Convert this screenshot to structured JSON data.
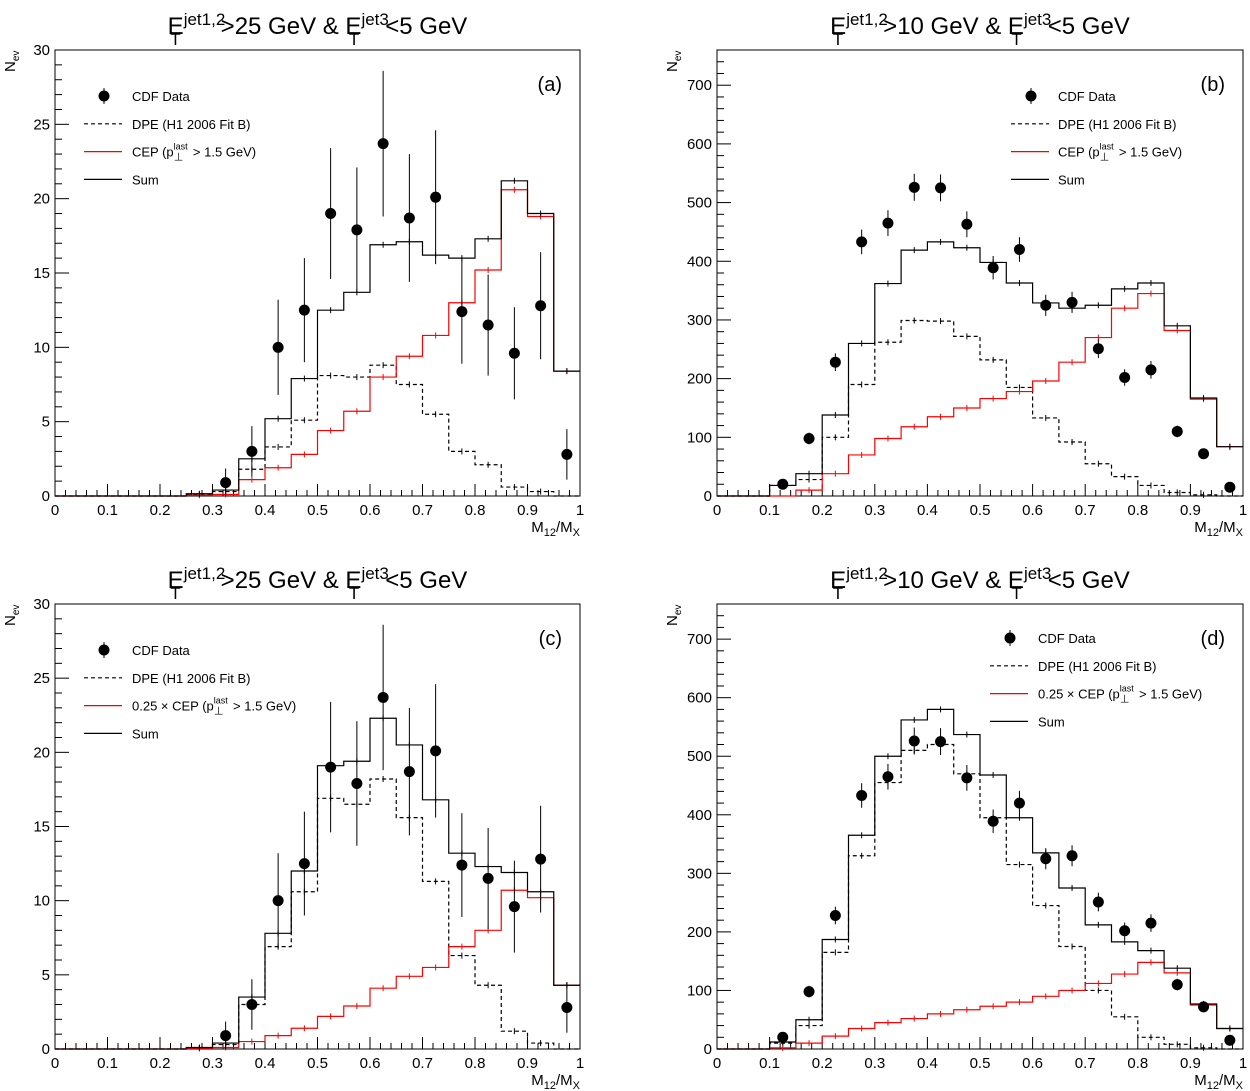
{
  "chart_data": [
    {
      "type": "histogram",
      "panel_label": "(a)",
      "title": {
        "p1": "E",
        "s1": "T",
        "u1": "jet1,2",
        "mid": ">25 GeV & E",
        "s2": "T",
        "u2": "jet3",
        "end": "<5 GeV"
      },
      "xlabel": "M12/MX",
      "ylabel": "Nev",
      "xlim": [
        0,
        1
      ],
      "ylim": [
        0,
        30
      ],
      "yticks": [
        0,
        5,
        10,
        15,
        20,
        25,
        30
      ],
      "bins": 20,
      "legend": [
        {
          "key": "data",
          "pre": "CDF Data",
          "sup": "",
          "post": ""
        },
        {
          "key": "dpe",
          "pre": "DPE (H1 2006 Fit B)",
          "sup": "",
          "post": ""
        },
        {
          "key": "cep",
          "pre": "CEP (p",
          "sup": "last",
          "post": " > 1.5 GeV)"
        },
        {
          "key": "sum",
          "pre": "Sum",
          "sup": "",
          "post": ""
        }
      ],
      "data_points": {
        "x": [
          0.325,
          0.375,
          0.425,
          0.475,
          0.525,
          0.575,
          0.625,
          0.675,
          0.725,
          0.775,
          0.825,
          0.875,
          0.925,
          0.975
        ],
        "y": [
          0.9,
          3.0,
          10.0,
          12.5,
          19.0,
          17.9,
          23.7,
          18.7,
          20.1,
          12.4,
          11.5,
          9.6,
          12.8,
          2.8
        ],
        "err": [
          0.95,
          1.7,
          3.2,
          3.5,
          4.4,
          4.2,
          4.9,
          4.3,
          4.5,
          3.5,
          3.4,
          3.1,
          3.6,
          1.7
        ]
      },
      "dpe": [
        0,
        0,
        0,
        0,
        0,
        0.1,
        0.3,
        1.8,
        3.3,
        5.1,
        8.1,
        8.0,
        8.8,
        7.5,
        5.5,
        3.0,
        2.1,
        0.6,
        0.3,
        0
      ],
      "cep": [
        0,
        0,
        0,
        0,
        0,
        0.05,
        0.1,
        1.1,
        1.9,
        2.8,
        4.4,
        5.7,
        8.0,
        9.4,
        10.8,
        13.0,
        15.2,
        20.6,
        18.8,
        8.4
      ],
      "sum": [
        0,
        0,
        0,
        0,
        0,
        0.15,
        0.4,
        2.5,
        5.2,
        7.9,
        12.5,
        13.7,
        16.9,
        17.1,
        16.2,
        16.0,
        17.3,
        21.2,
        19.0,
        8.4
      ]
    },
    {
      "type": "histogram",
      "panel_label": "(b)",
      "title": {
        "p1": "E",
        "s1": "T",
        "u1": "jet1,2",
        "mid": ">10 GeV & E",
        "s2": "T",
        "u2": "jet3",
        "end": "<5 GeV"
      },
      "xlabel": "M12/MX",
      "ylabel": "Nev",
      "xlim": [
        0,
        1
      ],
      "ylim": [
        0,
        760
      ],
      "yticks": [
        0,
        100,
        200,
        300,
        400,
        500,
        600,
        700
      ],
      "bins": 20,
      "legend": [
        {
          "key": "data",
          "pre": "CDF Data",
          "sup": "",
          "post": ""
        },
        {
          "key": "dpe",
          "pre": "DPE (H1 2006 Fit B)",
          "sup": "",
          "post": ""
        },
        {
          "key": "cep",
          "pre": "CEP (p",
          "sup": "last",
          "post": " > 1.5 GeV)"
        },
        {
          "key": "sum",
          "pre": "Sum",
          "sup": "",
          "post": ""
        }
      ],
      "data_points": {
        "x": [
          0.125,
          0.175,
          0.225,
          0.275,
          0.325,
          0.375,
          0.425,
          0.475,
          0.525,
          0.575,
          0.625,
          0.675,
          0.725,
          0.775,
          0.825,
          0.875,
          0.925,
          0.975
        ],
        "y": [
          20,
          98,
          228,
          433,
          465,
          526,
          525,
          463,
          389,
          420,
          325,
          330,
          251,
          202,
          215,
          110,
          72,
          15
        ],
        "err": [
          5,
          10,
          15,
          21,
          22,
          23,
          23,
          22,
          20,
          21,
          18,
          18,
          16,
          14,
          15,
          10,
          8,
          4
        ]
      },
      "dpe": [
        0,
        0,
        18,
        28,
        100,
        190,
        262,
        299,
        298,
        272,
        232,
        185,
        133,
        92,
        55,
        33,
        18,
        6,
        2,
        0
      ],
      "cep": [
        0,
        0,
        0,
        10,
        38,
        70,
        98,
        118,
        135,
        150,
        166,
        178,
        196,
        228,
        270,
        320,
        345,
        282,
        165,
        84
      ],
      "sum": [
        0,
        0,
        18,
        38,
        138,
        260,
        362,
        419,
        433,
        423,
        398,
        363,
        329,
        320,
        325,
        353,
        363,
        290,
        167,
        84
      ]
    },
    {
      "type": "histogram",
      "panel_label": "(c)",
      "title": {
        "p1": "E",
        "s1": "T",
        "u1": "jet1,2",
        "mid": ">25 GeV & E",
        "s2": "T",
        "u2": "jet3",
        "end": "<5 GeV"
      },
      "xlabel": "M12/MX",
      "ylabel": "Nev",
      "xlim": [
        0,
        1
      ],
      "ylim": [
        0,
        30
      ],
      "yticks": [
        0,
        5,
        10,
        15,
        20,
        25,
        30
      ],
      "bins": 20,
      "legend": [
        {
          "key": "data",
          "pre": "CDF Data",
          "sup": "",
          "post": ""
        },
        {
          "key": "dpe",
          "pre": "DPE (H1 2006 Fit B)",
          "sup": "",
          "post": ""
        },
        {
          "key": "cep",
          "pre": "0.25 × CEP (p",
          "sup": "last",
          "post": " > 1.5 GeV)"
        },
        {
          "key": "sum",
          "pre": "Sum",
          "sup": "",
          "post": ""
        }
      ],
      "data_points": {
        "x": [
          0.325,
          0.375,
          0.425,
          0.475,
          0.525,
          0.575,
          0.625,
          0.675,
          0.725,
          0.775,
          0.825,
          0.875,
          0.925,
          0.975
        ],
        "y": [
          0.9,
          3.0,
          10.0,
          12.5,
          19.0,
          17.9,
          23.7,
          18.7,
          20.1,
          12.4,
          11.5,
          9.6,
          12.8,
          2.8
        ],
        "err": [
          0.95,
          1.7,
          3.2,
          3.5,
          4.4,
          4.2,
          4.9,
          4.3,
          4.5,
          3.5,
          3.4,
          3.1,
          3.6,
          1.7
        ]
      },
      "dpe": [
        0,
        0,
        0,
        0,
        0,
        0.05,
        0.3,
        3.0,
        6.9,
        10.6,
        16.9,
        16.5,
        18.2,
        15.6,
        11.3,
        6.3,
        4.3,
        1.2,
        0.4,
        0
      ],
      "cep": [
        0,
        0,
        0,
        0,
        0,
        0.05,
        0.1,
        0.5,
        0.9,
        1.4,
        2.2,
        2.9,
        4.1,
        4.9,
        5.5,
        6.9,
        8.0,
        10.7,
        10.2,
        4.3
      ],
      "sum": [
        0,
        0,
        0,
        0,
        0,
        0.1,
        0.4,
        3.5,
        7.8,
        12.0,
        19.1,
        19.4,
        22.3,
        20.5,
        16.8,
        13.2,
        12.3,
        11.9,
        10.6,
        4.3
      ]
    },
    {
      "type": "histogram",
      "panel_label": "(d)",
      "title": {
        "p1": "E",
        "s1": "T",
        "u1": "jet1,2",
        "mid": ">10 GeV & E",
        "s2": "T",
        "u2": "jet3",
        "end": "<5 GeV"
      },
      "xlabel": "M12/MX",
      "ylabel": "Nev",
      "xlim": [
        0,
        1
      ],
      "ylim": [
        0,
        760
      ],
      "yticks": [
        0,
        100,
        200,
        300,
        400,
        500,
        600,
        700
      ],
      "bins": 20,
      "legend": [
        {
          "key": "data",
          "pre": "CDF Data",
          "sup": "",
          "post": ""
        },
        {
          "key": "dpe",
          "pre": "DPE (H1 2006 Fit B)",
          "sup": "",
          "post": ""
        },
        {
          "key": "cep",
          "pre": "0.25 × CEP (p",
          "sup": "last",
          "post": " > 1.5 GeV)"
        },
        {
          "key": "sum",
          "pre": "Sum",
          "sup": "",
          "post": ""
        }
      ],
      "data_points": {
        "x": [
          0.125,
          0.175,
          0.225,
          0.275,
          0.325,
          0.375,
          0.425,
          0.475,
          0.525,
          0.575,
          0.625,
          0.675,
          0.725,
          0.775,
          0.825,
          0.875,
          0.925,
          0.975
        ],
        "y": [
          20,
          98,
          228,
          433,
          465,
          526,
          525,
          463,
          389,
          420,
          325,
          330,
          251,
          202,
          215,
          110,
          72,
          15
        ],
        "err": [
          5,
          10,
          15,
          21,
          22,
          23,
          23,
          22,
          20,
          21,
          18,
          18,
          16,
          14,
          15,
          10,
          8,
          4
        ]
      },
      "dpe": [
        0,
        0,
        10,
        40,
        165,
        330,
        455,
        510,
        520,
        470,
        395,
        315,
        245,
        175,
        100,
        55,
        20,
        8,
        2,
        0
      ],
      "cep": [
        0,
        0,
        2,
        10,
        22,
        35,
        45,
        52,
        60,
        67,
        73,
        80,
        90,
        100,
        112,
        128,
        148,
        130,
        75,
        35
      ],
      "sum": [
        0,
        0,
        12,
        50,
        187,
        365,
        500,
        562,
        580,
        537,
        468,
        395,
        335,
        275,
        212,
        183,
        168,
        138,
        77,
        35
      ]
    }
  ]
}
